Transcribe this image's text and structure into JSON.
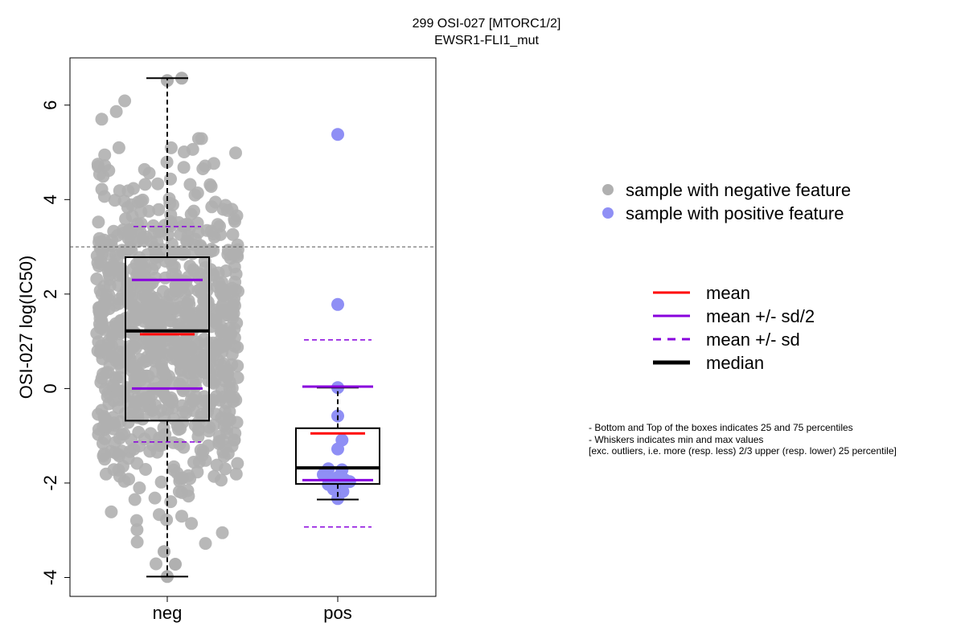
{
  "chart_data": {
    "type": "box",
    "title": [
      "299 OSI-027 [MTORC1/2]",
      "EWSR1-FLI1_mut"
    ],
    "ylabel": "OSI-027 log(IC50)",
    "ylim": [
      -4.4,
      7.0
    ],
    "yticks": [
      "-4",
      "-2",
      "0",
      "2",
      "4",
      "6"
    ],
    "categories": [
      "neg",
      "pos"
    ],
    "reference_line": 3.0,
    "colors": {
      "neg": "#b0b0b0",
      "pos": "#8f8ff5",
      "mean": "#ff0000",
      "sd": "#8800dd",
      "median": "#000000"
    },
    "groups": [
      {
        "name": "neg",
        "min": -3.98,
        "q1": -0.68,
        "median": 1.22,
        "q3": 2.78,
        "max": 6.57,
        "mean": 1.15,
        "mean_minus_half_sd": 0.0,
        "mean_plus_half_sd": 2.3,
        "mean_minus_sd": -1.13,
        "mean_plus_sd": 3.43,
        "n_points": 900
      },
      {
        "name": "pos",
        "min": -2.35,
        "q1": -2.02,
        "median": -1.68,
        "q3": -0.84,
        "max": 0.02,
        "mean": -0.95,
        "mean_minus_half_sd": -1.94,
        "mean_plus_half_sd": 0.04,
        "mean_minus_sd": -2.93,
        "mean_plus_sd": 1.03,
        "points": [
          {
            "x": 1.05,
            "y": 5.38
          },
          {
            "x": 1.05,
            "y": 1.78
          },
          {
            "x": 1.05,
            "y": 0.02
          },
          {
            "x": 1.05,
            "y": -0.58
          },
          {
            "x": 1.1,
            "y": -1.09
          },
          {
            "x": 1.05,
            "y": -1.28
          },
          {
            "x": 0.88,
            "y": -1.82
          },
          {
            "x": 0.94,
            "y": -1.7
          },
          {
            "x": 0.98,
            "y": -1.92
          },
          {
            "x": 1.05,
            "y": -1.88
          },
          {
            "x": 1.1,
            "y": -1.72
          },
          {
            "x": 1.13,
            "y": -1.93
          },
          {
            "x": 0.94,
            "y": -2.03
          },
          {
            "x": 1.0,
            "y": -2.13
          },
          {
            "x": 1.07,
            "y": -2.08
          },
          {
            "x": 1.11,
            "y": -2.18
          },
          {
            "x": 1.19,
            "y": -1.97
          },
          {
            "x": 1.05,
            "y": -2.33
          }
        ]
      }
    ],
    "legend_points": [
      {
        "label": "sample with negative feature",
        "color": "#b0b0b0"
      },
      {
        "label": "sample with positive feature",
        "color": "#8f8ff5"
      }
    ],
    "legend_lines": [
      {
        "label": "mean",
        "color": "#ff0000",
        "style": "solid"
      },
      {
        "label": "mean +/- sd/2",
        "color": "#8800dd",
        "style": "solid"
      },
      {
        "label": "mean +/- sd",
        "color": "#8800dd",
        "style": "dashed"
      },
      {
        "label": "median",
        "color": "#000000",
        "style": "thick"
      }
    ],
    "notes": [
      "- Bottom and Top of the boxes indicates 25 and 75 percentiles",
      "- Whiskers indicates min and max values",
      "[exc. outliers, i.e. more (resp. less) 2/3 upper (resp. lower) 25 percentile]"
    ]
  }
}
